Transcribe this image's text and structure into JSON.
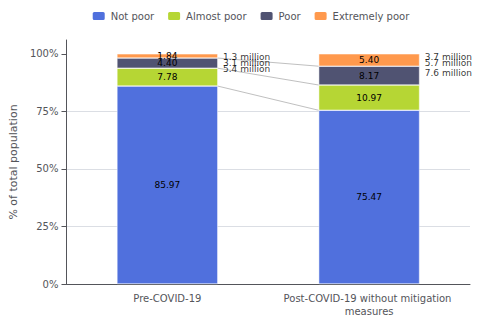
{
  "chart_data": {
    "type": "bar",
    "stacked": true,
    "data_labels": true,
    "grid": true,
    "legend": "top",
    "categories": [
      "Pre-COVID-19",
      "Post-COVID-19 without mitigation measures"
    ],
    "ylabel": "% of total population",
    "ylim": [
      0,
      106
    ],
    "yticks": [
      {
        "value": 0,
        "label": "0%"
      },
      {
        "value": 25,
        "label": "25%"
      },
      {
        "value": 50,
        "label": "50%"
      },
      {
        "value": 75,
        "label": "75%"
      },
      {
        "value": 100,
        "label": "100%"
      }
    ],
    "series": [
      {
        "name": "Not poor",
        "values": [
          85.97,
          75.47
        ],
        "value_labels": [
          "85.97",
          "75.47"
        ]
      },
      {
        "name": "Almost poor",
        "values": [
          7.78,
          10.97
        ],
        "value_labels": [
          "7.78",
          "10.97"
        ]
      },
      {
        "name": "Poor",
        "values": [
          4.4,
          8.17
        ],
        "value_labels": [
          "4.40",
          "8.17"
        ]
      },
      {
        "name": "Extremely poor",
        "values": [
          1.84,
          5.4
        ],
        "value_labels": [
          "1.84",
          "5.40"
        ]
      }
    ],
    "annotations": [
      {
        "category": "Pre-COVID-19",
        "y": 98.7,
        "text": "1.3 million"
      },
      {
        "category": "Pre-COVID-19",
        "y": 96.2,
        "text": "3.1 million"
      },
      {
        "category": "Pre-COVID-19",
        "y": 93.5,
        "text": "5.4 million"
      },
      {
        "category": "Post-COVID-19 without mitigation measures",
        "y": 98.7,
        "text": "3.7 million"
      },
      {
        "category": "Post-COVID-19 without mitigation measures",
        "y": 95.8,
        "text": "5.7 million"
      },
      {
        "category": "Post-COVID-19 without mitigation measures",
        "y": 91.5,
        "text": "7.6 million"
      }
    ]
  }
}
